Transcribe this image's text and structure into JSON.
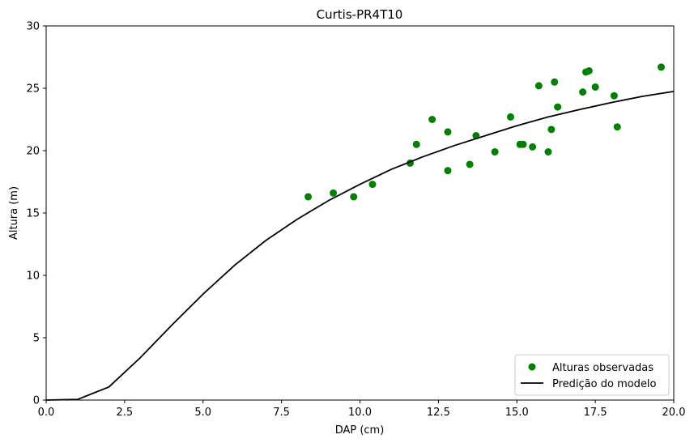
{
  "chart_data": {
    "type": "scatter",
    "title": "Curtis-PR4T10",
    "xlabel": "DAP (cm)",
    "ylabel": "Altura (m)",
    "xlim": [
      0,
      20
    ],
    "ylim": [
      0,
      30
    ],
    "xticks": [
      0.0,
      2.5,
      5.0,
      7.5,
      10.0,
      12.5,
      15.0,
      17.5,
      20.0
    ],
    "xtick_labels": [
      "0.0",
      "2.5",
      "5.0",
      "7.5",
      "10.0",
      "12.5",
      "15.0",
      "17.5",
      "20.0"
    ],
    "yticks": [
      0,
      5,
      10,
      15,
      20,
      25,
      30
    ],
    "ytick_labels": [
      "0",
      "5",
      "10",
      "15",
      "20",
      "25",
      "30"
    ],
    "grid": false,
    "legend_position": "bottom-right",
    "series": [
      {
        "name": "Alturas observadas",
        "kind": "scatter",
        "color": "#008000",
        "points": [
          [
            8.35,
            16.3
          ],
          [
            9.15,
            16.6
          ],
          [
            9.8,
            16.3
          ],
          [
            10.4,
            17.3
          ],
          [
            11.6,
            19.0
          ],
          [
            11.8,
            20.5
          ],
          [
            12.3,
            22.5
          ],
          [
            12.8,
            21.5
          ],
          [
            12.8,
            18.4
          ],
          [
            13.5,
            18.9
          ],
          [
            13.7,
            21.2
          ],
          [
            14.3,
            19.9
          ],
          [
            14.8,
            22.7
          ],
          [
            15.1,
            20.5
          ],
          [
            15.2,
            20.5
          ],
          [
            15.5,
            20.3
          ],
          [
            15.7,
            25.2
          ],
          [
            16.0,
            19.9
          ],
          [
            16.1,
            21.7
          ],
          [
            16.2,
            25.5
          ],
          [
            16.3,
            23.5
          ],
          [
            17.1,
            24.7
          ],
          [
            17.2,
            26.3
          ],
          [
            17.3,
            26.4
          ],
          [
            17.5,
            25.1
          ],
          [
            18.1,
            24.4
          ],
          [
            18.2,
            21.9
          ],
          [
            19.6,
            26.7
          ]
        ]
      },
      {
        "name": "Predição do modelo",
        "kind": "line",
        "color": "#000000",
        "points": [
          [
            0,
            0
          ],
          [
            1,
            0.05
          ],
          [
            2,
            1.05
          ],
          [
            3,
            3.4
          ],
          [
            4,
            6.0
          ],
          [
            5,
            8.5
          ],
          [
            6,
            10.8
          ],
          [
            7,
            12.8
          ],
          [
            8,
            14.5
          ],
          [
            9,
            16.0
          ],
          [
            10,
            17.3
          ],
          [
            11,
            18.5
          ],
          [
            12,
            19.5
          ],
          [
            13,
            20.4
          ],
          [
            14,
            21.2
          ],
          [
            15,
            22.0
          ],
          [
            16,
            22.7
          ],
          [
            17,
            23.3
          ],
          [
            18,
            23.85
          ],
          [
            19,
            24.35
          ],
          [
            20,
            24.75
          ]
        ]
      }
    ]
  }
}
